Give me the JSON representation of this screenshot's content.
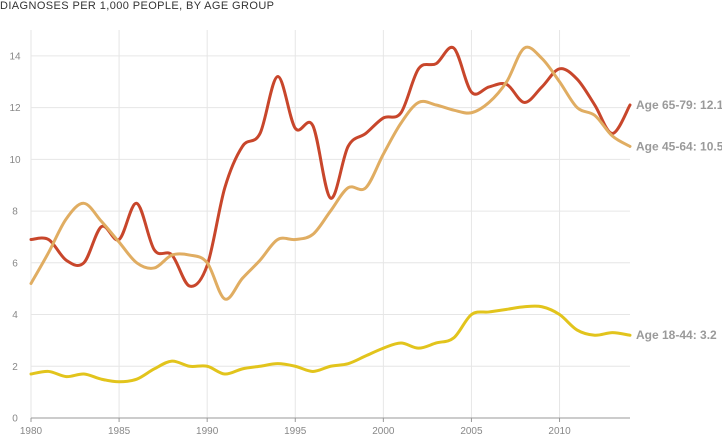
{
  "colors": {
    "age_65_79": "#c8462b",
    "age_45_64": "#e0ad62",
    "age_18_44": "#e2c41c",
    "grid": "#e6e6e6",
    "axis": "#999999"
  },
  "chart_data": {
    "type": "line",
    "title": "DIAGNOSES PER 1,000 PEOPLE, BY AGE GROUP",
    "xlabel": "",
    "ylabel": "",
    "xlim": [
      1980,
      2014
    ],
    "ylim": [
      0,
      15
    ],
    "x_ticks": [
      1980,
      1985,
      1990,
      1995,
      2000,
      2005,
      2010
    ],
    "y_ticks": [
      0,
      2,
      4,
      6,
      8,
      10,
      12,
      14
    ],
    "grid": true,
    "legend": "direct labels at right end of lines",
    "series": [
      {
        "name": "Age 65-79",
        "end_label": "Age 65-79: 12.1",
        "color_key": "age_65_79",
        "x": [
          1980,
          1981,
          1982,
          1983,
          1984,
          1985,
          1986,
          1987,
          1988,
          1989,
          1990,
          1991,
          1992,
          1993,
          1994,
          1995,
          1996,
          1997,
          1998,
          1999,
          2000,
          2001,
          2002,
          2003,
          2004,
          2005,
          2006,
          2007,
          2008,
          2009,
          2010,
          2011,
          2012,
          2013,
          2014
        ],
        "values": [
          6.9,
          6.9,
          6.1,
          6.0,
          7.4,
          6.9,
          8.3,
          6.5,
          6.3,
          5.1,
          5.9,
          8.9,
          10.5,
          11.0,
          13.2,
          11.2,
          11.3,
          8.5,
          10.5,
          11.0,
          11.6,
          11.8,
          13.5,
          13.7,
          14.3,
          12.6,
          12.8,
          12.9,
          12.2,
          12.8,
          13.5,
          13.1,
          12.1,
          11.0,
          12.1
        ]
      },
      {
        "name": "Age 45-64",
        "end_label": "Age 45-64: 10.5",
        "color_key": "age_45_64",
        "x": [
          1980,
          1981,
          1982,
          1983,
          1984,
          1985,
          1986,
          1987,
          1988,
          1989,
          1990,
          1991,
          1992,
          1993,
          1994,
          1995,
          1996,
          1997,
          1998,
          1999,
          2000,
          2001,
          2002,
          2003,
          2004,
          2005,
          2006,
          2007,
          2008,
          2009,
          2010,
          2011,
          2012,
          2013,
          2014
        ],
        "values": [
          5.2,
          6.4,
          7.7,
          8.3,
          7.6,
          6.8,
          6.0,
          5.8,
          6.3,
          6.3,
          6.0,
          4.6,
          5.4,
          6.1,
          6.9,
          6.9,
          7.1,
          8.0,
          8.9,
          8.9,
          10.2,
          11.4,
          12.2,
          12.1,
          11.9,
          11.8,
          12.2,
          13.0,
          14.3,
          13.9,
          13.0,
          12.0,
          11.7,
          10.9,
          10.5
        ]
      },
      {
        "name": "Age 18-44",
        "end_label": "Age 18-44: 3.2",
        "color_key": "age_18_44",
        "x": [
          1980,
          1981,
          1982,
          1983,
          1984,
          1985,
          1986,
          1987,
          1988,
          1989,
          1990,
          1991,
          1992,
          1993,
          1994,
          1995,
          1996,
          1997,
          1998,
          1999,
          2000,
          2001,
          2002,
          2003,
          2004,
          2005,
          2006,
          2007,
          2008,
          2009,
          2010,
          2011,
          2012,
          2013,
          2014
        ],
        "values": [
          1.7,
          1.8,
          1.6,
          1.7,
          1.5,
          1.4,
          1.5,
          1.9,
          2.2,
          2.0,
          2.0,
          1.7,
          1.9,
          2.0,
          2.1,
          2.0,
          1.8,
          2.0,
          2.1,
          2.4,
          2.7,
          2.9,
          2.7,
          2.9,
          3.1,
          4.0,
          4.1,
          4.2,
          4.3,
          4.3,
          4.0,
          3.4,
          3.2,
          3.3,
          3.2
        ]
      }
    ]
  }
}
